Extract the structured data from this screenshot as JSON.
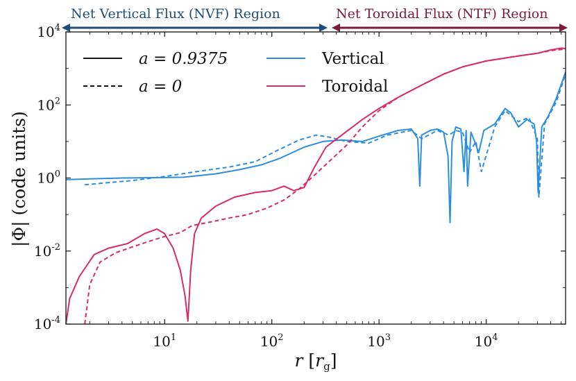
{
  "colors": {
    "vertical": "#2b8ee0",
    "toroidal": "#d92b63",
    "nvf_region": "#1e4d78",
    "ntf_region": "#7a1a3c",
    "axes": "#111111"
  },
  "regions": {
    "nvf_label": "Net Vertical Flux (NVF) Region",
    "ntf_label": "Net Toroidal Flux (NTF) Region"
  },
  "legend": {
    "solid_label": "a = 0.9375",
    "dashed_label": "a = 0",
    "vertical_label": "Vertical",
    "toroidal_label": "Toroidal"
  },
  "chart_data": {
    "type": "line",
    "xlabel": "r [r_g]",
    "ylabel": "|Φ| (code units)",
    "xscale": "log",
    "yscale": "log",
    "xlim": [
      1.2,
      55000
    ],
    "ylim": [
      0.0001,
      10000
    ],
    "x_ticks": [
      {
        "base": "10",
        "exp": "1",
        "value": 10
      },
      {
        "base": "10",
        "exp": "2",
        "value": 100
      },
      {
        "base": "10",
        "exp": "3",
        "value": 1000
      },
      {
        "base": "10",
        "exp": "4",
        "value": 10000
      }
    ],
    "y_ticks": [
      {
        "base": "10",
        "exp": "-4",
        "value": 0.0001
      },
      {
        "base": "10",
        "exp": "-2",
        "value": 0.01
      },
      {
        "base": "10",
        "exp": "0",
        "value": 1
      },
      {
        "base": "10",
        "exp": "2",
        "value": 100
      },
      {
        "base": "10",
        "exp": "4",
        "value": 10000
      }
    ],
    "grid": false,
    "legend_position": "upper-left",
    "region_boundary_r": 350,
    "series": [
      {
        "spin": "a = 0.9375",
        "component": "Vertical",
        "style": "solid",
        "color": "#2b8ee0",
        "x": [
          1.2,
          2,
          4,
          8,
          15,
          30,
          50,
          80,
          120,
          200,
          300,
          450,
          700,
          1000,
          1500,
          2000,
          2300,
          2400,
          2500,
          3000,
          3500,
          4000,
          4400,
          4600,
          4800,
          5200,
          5800,
          6200,
          6500,
          6700,
          7200,
          7800,
          8500,
          9000,
          9500,
          12000,
          15000,
          17000,
          20000,
          24000,
          28000,
          29500,
          30500,
          33000,
          38000,
          45000,
          55000
        ],
        "y": [
          0.9,
          0.95,
          1.0,
          1.02,
          1.05,
          1.3,
          1.7,
          2.3,
          3.5,
          7.0,
          10.0,
          11.0,
          10.0,
          14.0,
          20.0,
          22.0,
          12.0,
          0.6,
          15.0,
          20.0,
          22.0,
          18.0,
          4.0,
          0.06,
          10.0,
          25.0,
          22.0,
          1.5,
          20.0,
          0.6,
          18.0,
          10.0,
          5.0,
          10.0,
          20.0,
          30.0,
          80.0,
          60.0,
          25.0,
          40.0,
          30.0,
          10.0,
          0.4,
          25.0,
          50.0,
          150.0,
          800.0
        ]
      },
      {
        "spin": "a = 0",
        "component": "Vertical",
        "style": "dashed",
        "color": "#2b8ee0",
        "x": [
          1.8,
          3,
          5,
          10,
          20,
          40,
          70,
          110,
          180,
          260,
          350,
          500,
          800,
          1200,
          2000,
          2500,
          3500,
          4500,
          5200,
          6000,
          7000,
          8000,
          9000,
          12000,
          15000,
          20000,
          25000,
          30000,
          31000,
          35000,
          45000,
          55000
        ],
        "y": [
          0.65,
          0.75,
          0.85,
          1.1,
          1.5,
          2.0,
          2.8,
          5.5,
          11.0,
          15.0,
          13.0,
          10.0,
          9.0,
          15.0,
          20.0,
          12.0,
          20.0,
          15.0,
          20.0,
          18.0,
          5.0,
          10.0,
          1.5,
          25.0,
          70.0,
          35.0,
          45.0,
          12.0,
          0.3,
          30.0,
          120.0,
          700.0
        ]
      },
      {
        "spin": "a = 0.9375",
        "component": "Toroidal",
        "style": "solid",
        "color": "#d92b63",
        "x": [
          1.2,
          1.3,
          1.6,
          2.2,
          3.0,
          4.5,
          6.5,
          8.5,
          10,
          12,
          14,
          15.5,
          16.5,
          17.5,
          19,
          22,
          30,
          45,
          70,
          100,
          130,
          160,
          200,
          250,
          320,
          450,
          700,
          1000,
          1500,
          2500,
          4000,
          6000,
          10000,
          20000,
          30000,
          40000,
          50000,
          55000
        ],
        "y": [
          0.0001,
          0.0005,
          0.002,
          0.008,
          0.012,
          0.016,
          0.03,
          0.04,
          0.03,
          0.012,
          0.003,
          0.0006,
          0.00012,
          0.003,
          0.03,
          0.08,
          0.17,
          0.3,
          0.4,
          0.45,
          0.6,
          0.45,
          0.55,
          2.0,
          7.0,
          15.0,
          40.0,
          80.0,
          160.0,
          350.0,
          700.0,
          1100.0,
          1600.0,
          2200.0,
          2600.0,
          3200.0,
          3600.0,
          3500.0
        ]
      },
      {
        "spin": "a = 0",
        "component": "Toroidal",
        "style": "dashed",
        "color": "#d92b63",
        "x": [
          1.8,
          2.0,
          2.5,
          3.5,
          5,
          7,
          10,
          14,
          18,
          25,
          40,
          60,
          90,
          130,
          180,
          250,
          350,
          500,
          700,
          1000,
          1500,
          2500,
          4000,
          6000,
          10000,
          20000,
          30000,
          40000,
          55000
        ],
        "y": [
          0.0001,
          0.0012,
          0.005,
          0.009,
          0.013,
          0.018,
          0.025,
          0.032,
          0.05,
          0.06,
          0.08,
          0.1,
          0.15,
          0.25,
          0.5,
          1.2,
          3.0,
          8.0,
          25.0,
          70.0,
          160.0,
          350.0,
          700.0,
          1100.0,
          1600.0,
          2200.0,
          2600.0,
          3100.0,
          3400.0
        ]
      }
    ]
  }
}
